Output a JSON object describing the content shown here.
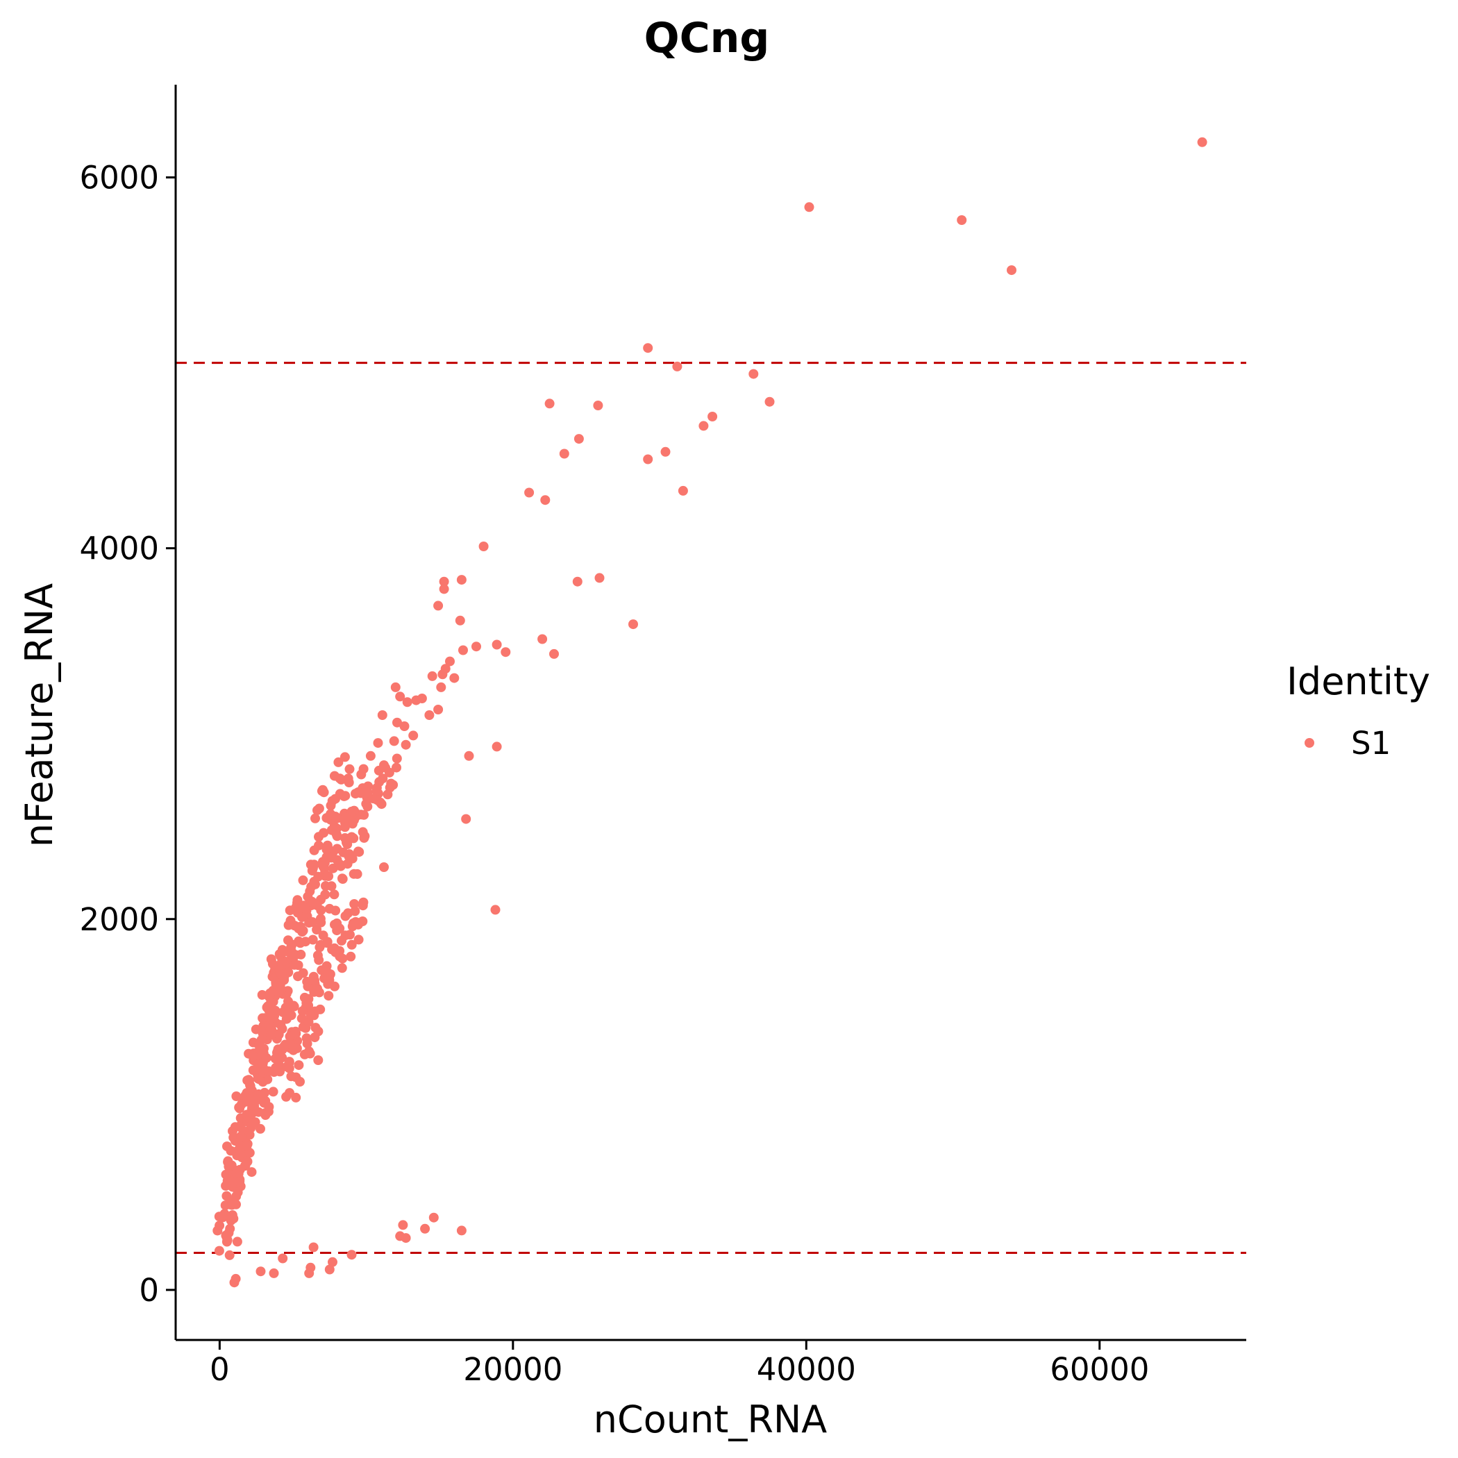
{
  "chart_data": {
    "type": "scatter",
    "title": "QCng",
    "xlabel": "nCount_RNA",
    "ylabel": "nFeature_RNA",
    "xlim": [
      -3000,
      70000
    ],
    "ylim": [
      -270,
      6500
    ],
    "x_ticks": [
      0,
      20000,
      40000,
      60000
    ],
    "y_ticks": [
      0,
      2000,
      4000,
      6000
    ],
    "x_tick_labels": [
      "0",
      "20000",
      "40000",
      "60000"
    ],
    "y_tick_labels": [
      "0",
      "2000",
      "4000",
      "6000"
    ],
    "grid": false,
    "legend": {
      "title": "Identity",
      "placement": "right",
      "entries": [
        "S1"
      ]
    },
    "series": [
      {
        "name": "S1",
        "color": "#F8766D",
        "points": [
          [
            67000,
            6190
          ],
          [
            40200,
            5840
          ],
          [
            50600,
            5770
          ],
          [
            54000,
            5500
          ],
          [
            29200,
            5080
          ],
          [
            31200,
            4980
          ],
          [
            36400,
            4940
          ],
          [
            37500,
            4790
          ],
          [
            22500,
            4780
          ],
          [
            25800,
            4770
          ],
          [
            33600,
            4710
          ],
          [
            33000,
            4660
          ],
          [
            24500,
            4590
          ],
          [
            23500,
            4510
          ],
          [
            30400,
            4520
          ],
          [
            29200,
            4480
          ],
          [
            31600,
            4310
          ],
          [
            21100,
            4300
          ],
          [
            22200,
            4260
          ],
          [
            18000,
            4010
          ],
          [
            15300,
            3820
          ],
          [
            16500,
            3830
          ],
          [
            15300,
            3780
          ],
          [
            24400,
            3820
          ],
          [
            25900,
            3840
          ],
          [
            14900,
            3690
          ],
          [
            16400,
            3610
          ],
          [
            28200,
            3590
          ],
          [
            22000,
            3510
          ],
          [
            22800,
            3430
          ],
          [
            17500,
            3470
          ],
          [
            18900,
            3480
          ],
          [
            19500,
            3440
          ],
          [
            16600,
            3450
          ],
          [
            15700,
            3390
          ],
          [
            15400,
            3350
          ],
          [
            15200,
            3320
          ],
          [
            16000,
            3300
          ],
          [
            14500,
            3310
          ],
          [
            15100,
            3250
          ],
          [
            12000,
            3250
          ],
          [
            12300,
            3200
          ],
          [
            12800,
            3170
          ],
          [
            13400,
            3180
          ],
          [
            13800,
            3190
          ],
          [
            14900,
            3130
          ],
          [
            14300,
            3100
          ],
          [
            11100,
            3100
          ],
          [
            12100,
            3060
          ],
          [
            12600,
            3040
          ],
          [
            13200,
            2990
          ],
          [
            10800,
            2950
          ],
          [
            11900,
            2960
          ],
          [
            10300,
            2880
          ],
          [
            17000,
            2880
          ],
          [
            18900,
            2930
          ],
          [
            12700,
            2940
          ],
          [
            11200,
            2830
          ],
          [
            16800,
            2540
          ],
          [
            11200,
            2280
          ],
          [
            9800,
            2090
          ],
          [
            18800,
            2050
          ],
          [
            12500,
            350
          ],
          [
            14600,
            390
          ],
          [
            12300,
            290
          ],
          [
            12700,
            280
          ],
          [
            14000,
            330
          ],
          [
            16500,
            320
          ],
          [
            9000,
            190
          ],
          [
            6400,
            230
          ],
          [
            7700,
            150
          ],
          [
            7500,
            110
          ],
          [
            4300,
            170
          ],
          [
            6200,
            120
          ],
          [
            6100,
            90
          ],
          [
            3700,
            90
          ],
          [
            2800,
            100
          ],
          [
            1000,
            40
          ],
          [
            1100,
            60
          ]
        ],
        "cluster_points": [
          [
            500,
            260
          ],
          [
            600,
            330
          ],
          [
            700,
            420
          ],
          [
            900,
            540
          ],
          [
            1100,
            640
          ],
          [
            1300,
            760
          ],
          [
            1600,
            880
          ],
          [
            1900,
            1000
          ],
          [
            2200,
            1120
          ],
          [
            2600,
            1230
          ],
          [
            3000,
            1350
          ],
          [
            3400,
            1460
          ],
          [
            3900,
            1560
          ],
          [
            4300,
            1660
          ],
          [
            4800,
            1760
          ],
          [
            5400,
            1860
          ],
          [
            6000,
            1950
          ],
          [
            6600,
            2050
          ],
          [
            7200,
            2150
          ],
          [
            7800,
            2260
          ],
          [
            8300,
            2360
          ],
          [
            8800,
            2460
          ],
          [
            9200,
            2560
          ],
          [
            9700,
            2650
          ],
          [
            10200,
            2730
          ],
          [
            1000,
            620
          ],
          [
            1400,
            760
          ],
          [
            2000,
            860
          ],
          [
            2500,
            980
          ],
          [
            3000,
            1080
          ],
          [
            3600,
            1180
          ],
          [
            4200,
            1280
          ],
          [
            4900,
            1380
          ],
          [
            5600,
            1460
          ],
          [
            6300,
            1560
          ],
          [
            7000,
            1660
          ],
          [
            7700,
            1760
          ],
          [
            8400,
            1860
          ],
          [
            9100,
            1960
          ],
          [
            9600,
            2040
          ],
          [
            600,
            470
          ],
          [
            800,
            580
          ],
          [
            1100,
            710
          ],
          [
            1400,
            860
          ],
          [
            1700,
            990
          ],
          [
            2100,
            1110
          ],
          [
            2500,
            1260
          ],
          [
            2900,
            1390
          ],
          [
            3300,
            1520
          ],
          [
            3700,
            1640
          ],
          [
            4200,
            1730
          ],
          [
            4600,
            1830
          ],
          [
            5100,
            1940
          ],
          [
            5600,
            2040
          ],
          [
            6100,
            2140
          ],
          [
            6600,
            2240
          ],
          [
            7100,
            2340
          ],
          [
            7600,
            2440
          ],
          [
            8100,
            2520
          ],
          [
            8600,
            2610
          ],
          [
            3900,
            1720
          ],
          [
            4100,
            1680
          ],
          [
            3500,
            1420
          ],
          [
            4700,
            1500
          ],
          [
            5900,
            1650
          ],
          [
            6900,
            1800
          ],
          [
            7500,
            1900
          ],
          [
            8000,
            2000
          ],
          [
            2300,
            900
          ],
          [
            2800,
            1000
          ],
          [
            5000,
            1250
          ],
          [
            5500,
            1350
          ],
          [
            6200,
            1480
          ],
          [
            7300,
            1700
          ],
          [
            8900,
            2300
          ],
          [
            9500,
            2400
          ],
          [
            10600,
            2640
          ],
          [
            11000,
            2720
          ],
          [
            11700,
            2800
          ],
          [
            7000,
            2620
          ],
          [
            7400,
            2520
          ],
          [
            8200,
            2700
          ],
          [
            8700,
            2800
          ],
          [
            6700,
            2260
          ],
          [
            5300,
            2030
          ],
          [
            4400,
            1360
          ],
          [
            3300,
            1200
          ],
          [
            6400,
            1320
          ],
          [
            4900,
            1100
          ],
          [
            1800,
            700
          ]
        ]
      }
    ],
    "hlines": [
      {
        "y": 5000,
        "color": "#C00000",
        "style": "dashed"
      },
      {
        "y": 200,
        "color": "#C00000",
        "style": "dashed"
      }
    ]
  }
}
